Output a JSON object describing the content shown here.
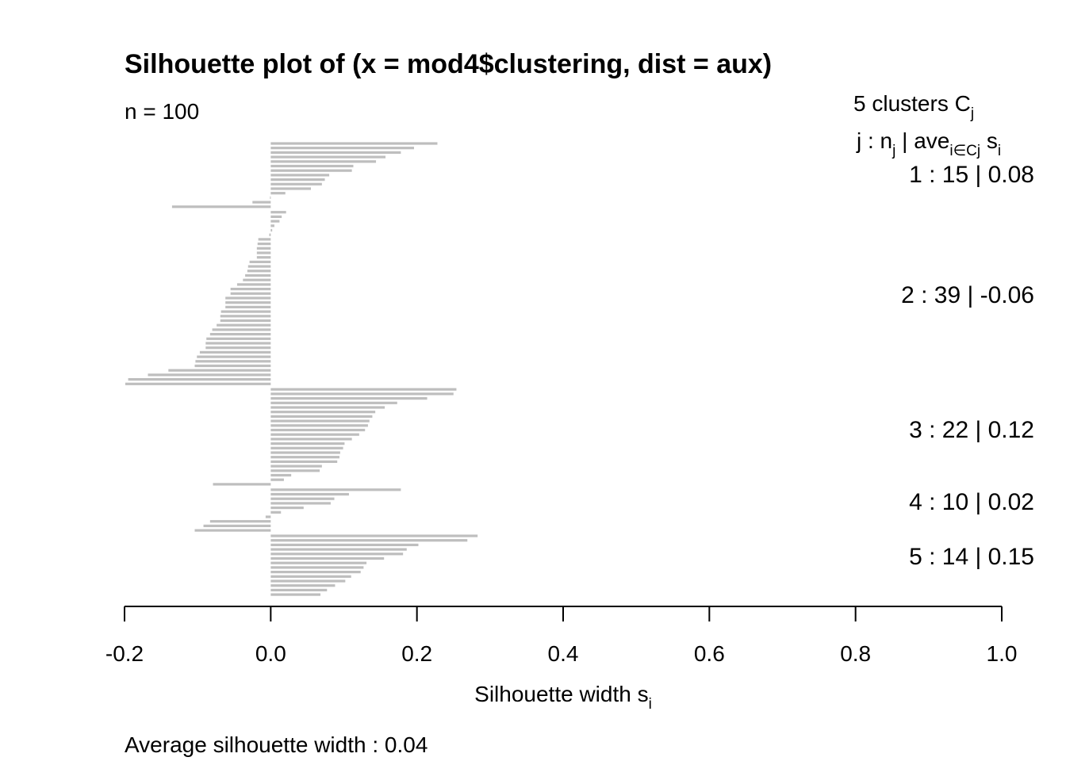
{
  "chart_data": {
    "type": "bar",
    "orientation": "horizontal",
    "title": "Silhouette plot of (x = mod4$clustering, dist = aux)",
    "n_label": "n = 100",
    "clusters_label": "5  clusters  C",
    "clusters_label_sub": "j",
    "header": {
      "j": "j :  n",
      "j_sub": "j",
      "bar": " | ave",
      "ave_sub": "i∈Cj",
      "s": "  s",
      "s_sub": "i"
    },
    "xlabel": "Silhouette width s",
    "xlabel_sub": "i",
    "footer": "Average silhouette width :  0.04",
    "xlim": [
      -0.2,
      1.0
    ],
    "x_ticks": [
      -0.2,
      0.0,
      0.2,
      0.4,
      0.6,
      0.8,
      1.0
    ],
    "x_tick_labels": [
      "-0.2",
      "0.0",
      "0.2",
      "0.4",
      "0.6",
      "0.8",
      "1.0"
    ],
    "bar_color": "#bebebe",
    "clusters": [
      {
        "j": "1",
        "n": "15",
        "ave": "0.08",
        "values": [
          0.228,
          0.196,
          0.178,
          0.157,
          0.144,
          0.113,
          0.111,
          0.08,
          0.074,
          0.07,
          0.055,
          0.02,
          -0.001,
          -0.025,
          -0.135
        ]
      },
      {
        "j": "2",
        "n": "39",
        "ave": "-0.06",
        "values": [
          0.021,
          0.015,
          0.012,
          0.005,
          0.002,
          -0.002,
          -0.017,
          -0.018,
          -0.019,
          -0.019,
          -0.019,
          -0.029,
          -0.031,
          -0.032,
          -0.035,
          -0.038,
          -0.046,
          -0.055,
          -0.055,
          -0.062,
          -0.062,
          -0.062,
          -0.068,
          -0.069,
          -0.069,
          -0.074,
          -0.08,
          -0.083,
          -0.088,
          -0.089,
          -0.089,
          -0.097,
          -0.101,
          -0.103,
          -0.104,
          -0.14,
          -0.168,
          -0.195,
          -0.199
        ]
      },
      {
        "j": "3",
        "n": "22",
        "ave": "0.12",
        "values": [
          0.254,
          0.25,
          0.214,
          0.173,
          0.156,
          0.143,
          0.139,
          0.135,
          0.133,
          0.129,
          0.121,
          0.111,
          0.101,
          0.099,
          0.095,
          0.094,
          0.091,
          0.07,
          0.067,
          0.028,
          0.018,
          -0.079
        ]
      },
      {
        "j": "4",
        "n": "10",
        "ave": "0.02",
        "values": [
          0.178,
          0.107,
          0.087,
          0.082,
          0.045,
          0.014,
          -0.007,
          -0.083,
          -0.092,
          -0.104
        ]
      },
      {
        "j": "5",
        "n": "14",
        "ave": "0.15",
        "values": [
          0.283,
          0.269,
          0.202,
          0.186,
          0.181,
          0.155,
          0.131,
          0.127,
          0.123,
          0.11,
          0.102,
          0.088,
          0.077,
          0.068
        ]
      }
    ]
  }
}
